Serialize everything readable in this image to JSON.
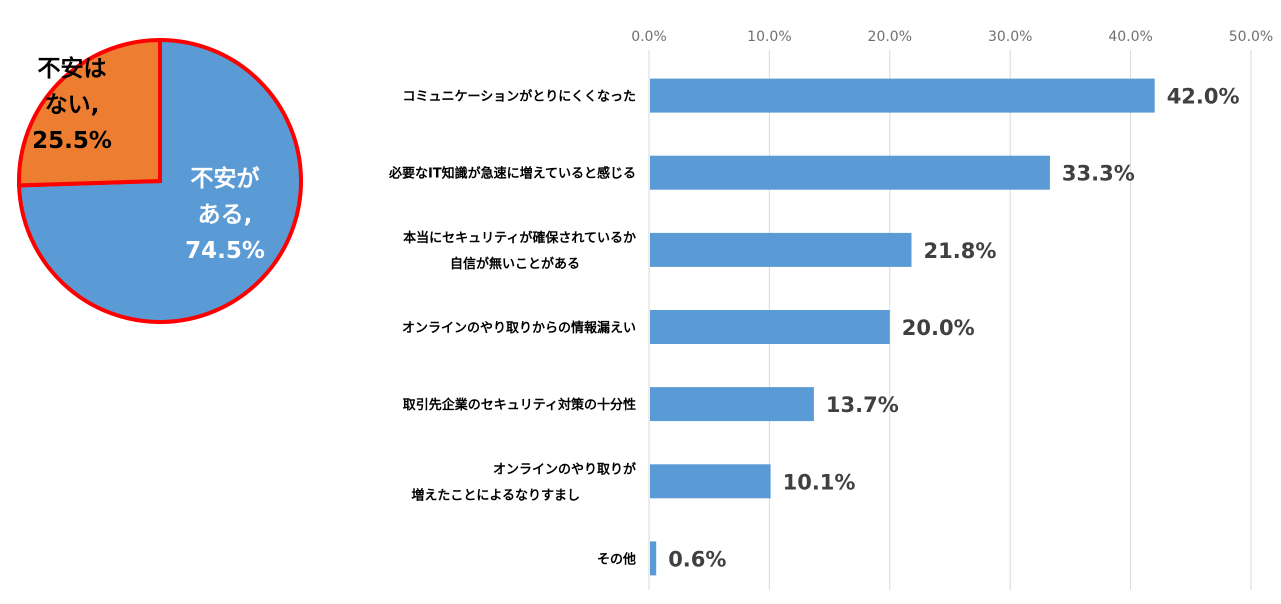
{
  "colors": {
    "bar": "#5b9bd5",
    "pie_yes": "#5b9bd5",
    "pie_no": "#ed7d31",
    "pie_outline": "#ff0000",
    "grid": "#d9d9d9"
  },
  "chart_data": [
    {
      "type": "pie",
      "slices": [
        {
          "label_lines": [
            "不安が",
            "ある,",
            "74.5%"
          ],
          "value": 74.5,
          "color": "#5b9bd5"
        },
        {
          "label_lines": [
            "不安は",
            "ない,",
            "25.5%"
          ],
          "value": 25.5,
          "color": "#ed7d31"
        }
      ]
    },
    {
      "type": "bar",
      "orientation": "horizontal",
      "xlim": [
        0,
        50
      ],
      "ticks": [
        "0.0%",
        "10.0%",
        "20.0%",
        "30.0%",
        "40.0%",
        "50.0%"
      ],
      "tick_values": [
        0,
        10,
        20,
        30,
        40,
        50
      ],
      "grid": true,
      "categories": [
        [
          "コミュニケーションがとりにくくなった"
        ],
        [
          "必要なIT知識が急速に増えていると感じる"
        ],
        [
          "本当にセキュリティが確保されているか",
          "自信が無いことがある"
        ],
        [
          "オンラインのやり取りからの情報漏えい"
        ],
        [
          "取引先企業のセキュリティ対策の十分性"
        ],
        [
          "オンラインのやり取りが",
          "増えたことによるなりすまし"
        ],
        [
          "その他"
        ]
      ],
      "values": [
        42.0,
        33.3,
        21.8,
        20.0,
        13.7,
        10.1,
        0.6
      ],
      "labels": [
        "42.0%",
        "33.3%",
        "21.8%",
        "20.0%",
        "13.7%",
        "10.1%",
        "0.6%"
      ]
    }
  ]
}
